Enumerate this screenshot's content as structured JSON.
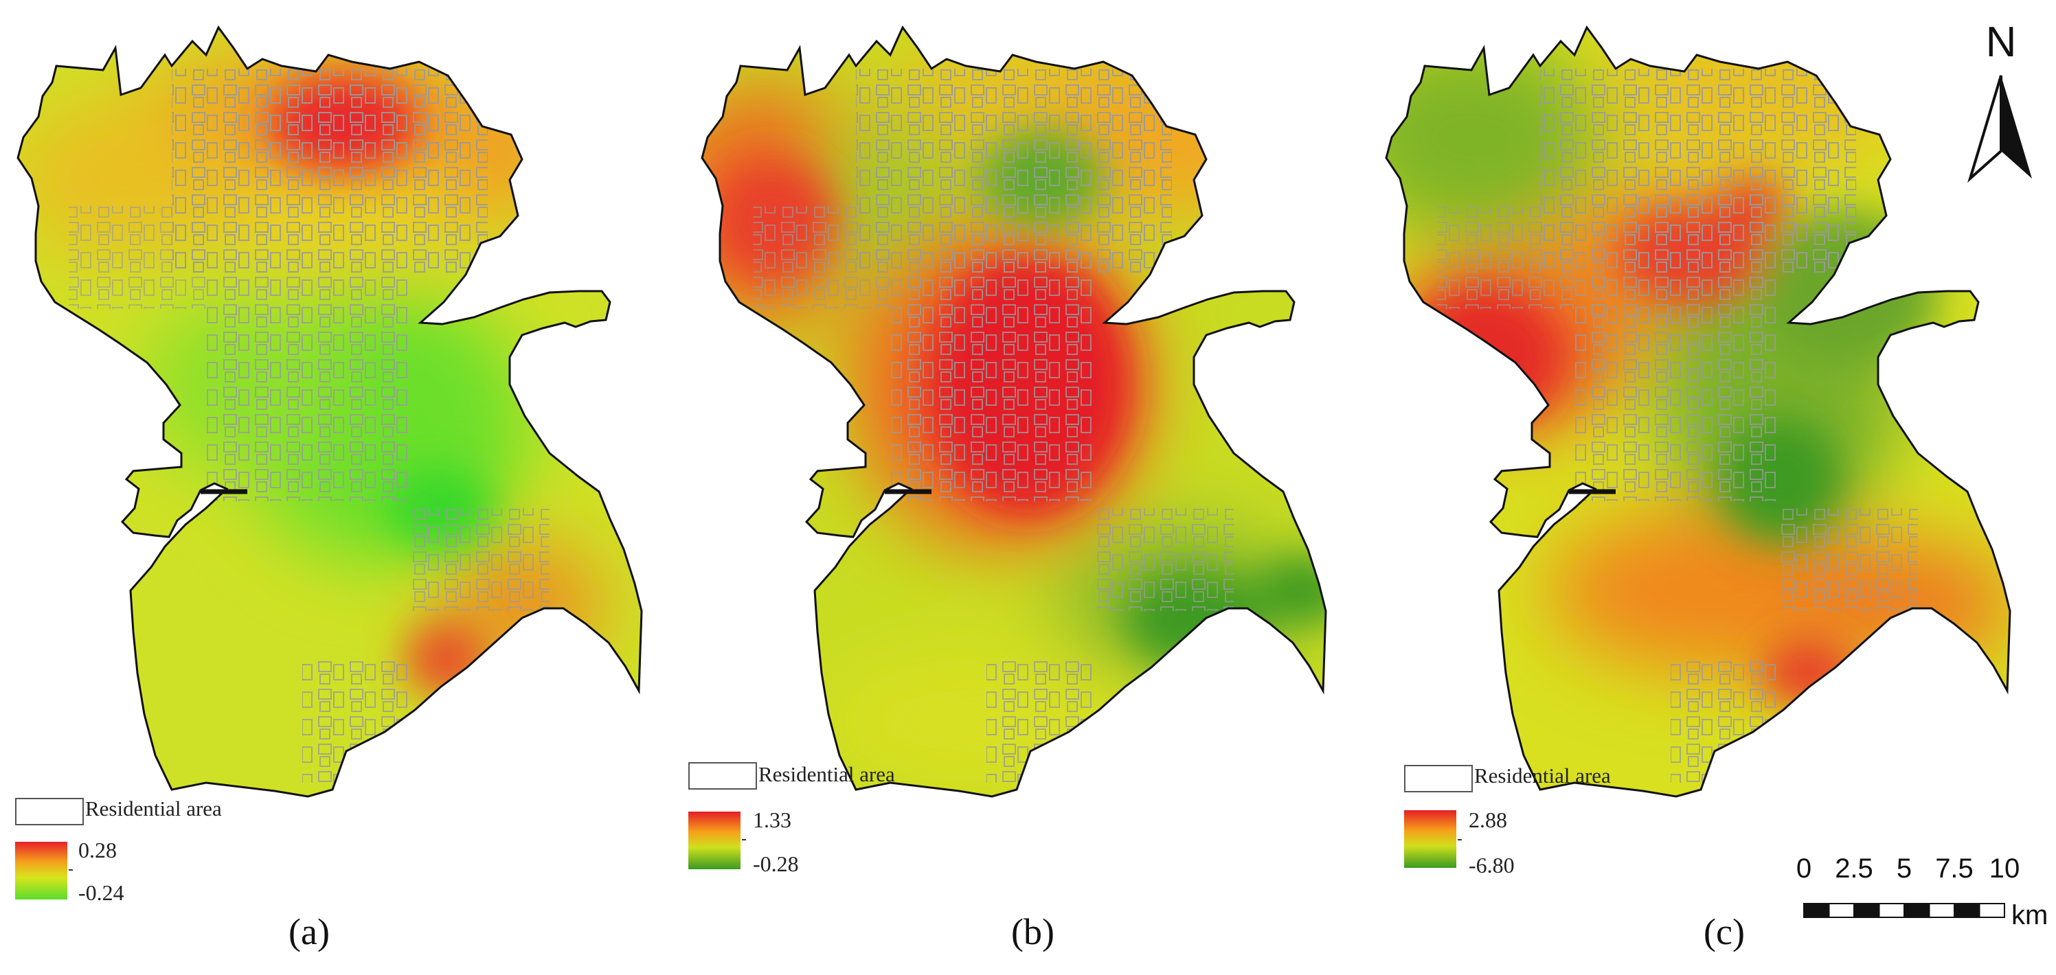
{
  "panels": [
    {
      "id": "a",
      "caption": "(a)",
      "legend_label": "Residential area",
      "max_label": "0.28",
      "min_label": "-0.24",
      "ramp_colors": [
        "#e8202a",
        "#f4a21c",
        "#d8e41c",
        "#5bdc2c"
      ],
      "blobs": [
        {
          "fill": "#e6781e",
          "level": 0.7
        },
        {
          "fill": "#e8252a",
          "level": 1.0
        },
        {
          "fill": "#6cdf2a",
          "level": 0.0
        },
        {
          "fill": "#e8502a",
          "level": 0.85
        }
      ]
    },
    {
      "id": "b",
      "caption": "(b)",
      "legend_label": "Residential area",
      "max_label": "1.33",
      "min_label": "-0.28",
      "ramp_colors": [
        "#e41e26",
        "#f6a01a",
        "#cfe01c",
        "#3c9a22"
      ],
      "blobs": [
        {
          "fill": "#e41e26",
          "level": 1.0
        },
        {
          "fill": "#e8402a",
          "level": 0.9
        },
        {
          "fill": "#5ea82a",
          "level": 0.1
        },
        {
          "fill": "#3c9a22",
          "level": 0.0
        }
      ]
    },
    {
      "id": "c",
      "caption": "(c)",
      "legend_label": "Residential area",
      "max_label": "2.88",
      "min_label": "-6.80",
      "ramp_colors": [
        "#e41e26",
        "#f6a01a",
        "#cfe01c",
        "#3c9a22"
      ],
      "blobs": [
        {
          "fill": "#e42a26",
          "level": 1.0
        },
        {
          "fill": "#6aa62c",
          "level": 0.2
        },
        {
          "fill": "#e8402a",
          "level": 0.9
        },
        {
          "fill": "#3c9a22",
          "level": 0.0
        }
      ]
    }
  ],
  "north_arrow": {
    "label": "N"
  },
  "scale_bar": {
    "ticks": [
      "0",
      "2.5",
      "5",
      "7.5",
      "10"
    ],
    "unit": "km"
  },
  "colors": {
    "outline": "#111111",
    "residential": "#999999",
    "background": "#ffffff"
  }
}
